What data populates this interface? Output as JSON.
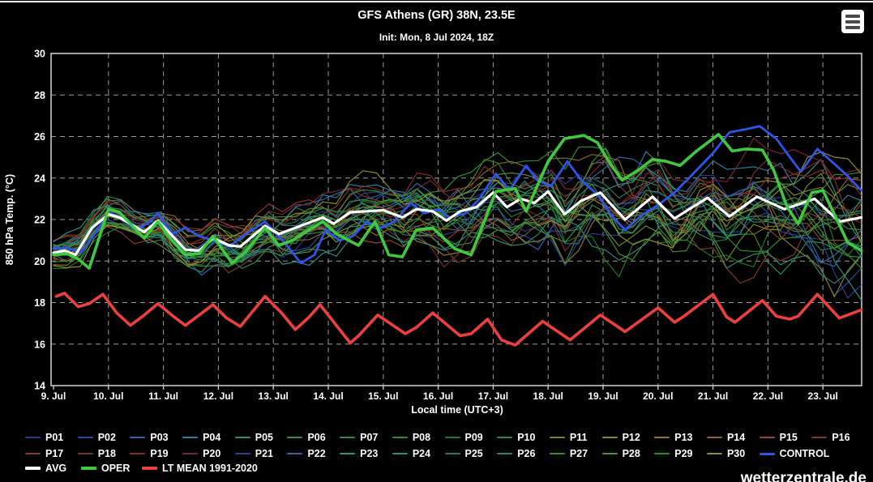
{
  "header": {
    "title": "GFS Athens (GR) 38N, 23.5E",
    "subtitle": "Init: Mon, 8 Jul 2024, 18Z"
  },
  "watermark": "wetterzentrale.de",
  "colors": {
    "background": "#000000",
    "plot_border": "#c9c9c9",
    "grid": "#9a9a9a",
    "text": "#ffffff",
    "menu_button_bg": "#ffffff",
    "menu_button_bars": "#4a4a4a",
    "avg": "#ffffff",
    "oper": "#3fc93f",
    "control": "#2e55e8",
    "lt_mean": "#ee3f3f"
  },
  "menu": {
    "icon": "hamburger-menu-icon"
  },
  "chart_data": {
    "type": "line",
    "title": "GFS Athens (GR) 38N, 23.5E",
    "subtitle": "Init: Mon, 8 Jul 2024, 18Z",
    "xlabel": "Local time (UTC+3)",
    "ylabel": "850 hPa Temp. (°C)",
    "ylim": [
      14,
      30
    ],
    "y_ticks": [
      14,
      16,
      18,
      20,
      22,
      24,
      26,
      28,
      30
    ],
    "x_tick_labels": [
      "9. Jul",
      "10. Jul",
      "11. Jul",
      "12. Jul",
      "13. Jul",
      "14. Jul",
      "15. Jul",
      "16. Jul",
      "17. Jul",
      "18. Jul",
      "19. Jul",
      "20. Jul",
      "21. Jul",
      "22. Jul",
      "23. Jul"
    ],
    "x_range_days": [
      9.0,
      23.7
    ],
    "grid": "dashed gray; horizontal every 2°C, vertical daily",
    "legend_position": "bottom",
    "series": [
      {
        "name": "AVG",
        "color": "#ffffff",
        "width": 3.2,
        "points": [
          [
            9.0,
            20.4
          ],
          [
            9.2,
            20.5
          ],
          [
            9.4,
            20.3
          ],
          [
            9.7,
            21.6
          ],
          [
            10.0,
            22.25
          ],
          [
            10.2,
            22.1
          ],
          [
            10.65,
            21.4
          ],
          [
            10.9,
            21.95
          ],
          [
            11.4,
            20.55
          ],
          [
            11.65,
            20.5
          ],
          [
            11.9,
            21.1
          ],
          [
            12.2,
            20.75
          ],
          [
            12.4,
            20.7
          ],
          [
            12.85,
            21.7
          ],
          [
            13.1,
            21.3
          ],
          [
            13.4,
            21.6
          ],
          [
            13.9,
            22.1
          ],
          [
            14.1,
            21.8
          ],
          [
            14.4,
            22.35
          ],
          [
            14.7,
            22.4
          ],
          [
            15.0,
            22.45
          ],
          [
            15.35,
            22.1
          ],
          [
            15.6,
            22.5
          ],
          [
            15.9,
            22.4
          ],
          [
            16.15,
            21.95
          ],
          [
            16.4,
            22.4
          ],
          [
            16.7,
            22.6
          ],
          [
            17.0,
            23.3
          ],
          [
            17.25,
            22.6
          ],
          [
            17.5,
            23.0
          ],
          [
            17.75,
            22.8
          ],
          [
            18.0,
            23.35
          ],
          [
            18.3,
            22.25
          ],
          [
            18.6,
            22.9
          ],
          [
            18.95,
            23.3
          ],
          [
            19.4,
            22.0
          ],
          [
            19.9,
            23.1
          ],
          [
            20.3,
            22.05
          ],
          [
            20.9,
            23.05
          ],
          [
            21.3,
            22.15
          ],
          [
            21.8,
            23.1
          ],
          [
            22.3,
            22.5
          ],
          [
            22.85,
            23.0
          ],
          [
            23.3,
            21.9
          ],
          [
            23.7,
            22.1
          ]
        ]
      },
      {
        "name": "OPER",
        "color": "#3fc93f",
        "width": 3.6,
        "points": [
          [
            9.0,
            20.3
          ],
          [
            9.25,
            20.35
          ],
          [
            9.45,
            20.1
          ],
          [
            9.65,
            19.65
          ],
          [
            10.0,
            22.5
          ],
          [
            10.2,
            22.35
          ],
          [
            10.65,
            21.1
          ],
          [
            10.9,
            21.9
          ],
          [
            11.15,
            21.0
          ],
          [
            11.4,
            20.3
          ],
          [
            11.65,
            20.35
          ],
          [
            11.9,
            21.2
          ],
          [
            12.25,
            19.9
          ],
          [
            12.5,
            20.45
          ],
          [
            12.85,
            21.6
          ],
          [
            13.1,
            20.75
          ],
          [
            13.35,
            21.0
          ],
          [
            13.9,
            21.9
          ],
          [
            14.15,
            21.3
          ],
          [
            14.55,
            20.75
          ],
          [
            14.85,
            21.9
          ],
          [
            15.1,
            20.3
          ],
          [
            15.35,
            20.2
          ],
          [
            15.6,
            21.5
          ],
          [
            15.9,
            21.6
          ],
          [
            16.3,
            20.6
          ],
          [
            16.6,
            20.3
          ],
          [
            17.05,
            23.35
          ],
          [
            17.4,
            23.5
          ],
          [
            17.6,
            22.4
          ],
          [
            18.0,
            24.8
          ],
          [
            18.3,
            25.9
          ],
          [
            18.65,
            26.05
          ],
          [
            18.9,
            25.7
          ],
          [
            19.15,
            24.6
          ],
          [
            19.35,
            23.9
          ],
          [
            19.65,
            24.4
          ],
          [
            19.9,
            24.9
          ],
          [
            20.15,
            24.8
          ],
          [
            20.4,
            24.6
          ],
          [
            20.7,
            25.3
          ],
          [
            21.1,
            26.1
          ],
          [
            21.35,
            25.3
          ],
          [
            21.6,
            25.4
          ],
          [
            21.9,
            25.35
          ],
          [
            22.1,
            24.4
          ],
          [
            22.35,
            22.6
          ],
          [
            22.55,
            21.8
          ],
          [
            22.8,
            23.3
          ],
          [
            23.0,
            23.4
          ],
          [
            23.2,
            22.3
          ],
          [
            23.45,
            20.9
          ],
          [
            23.7,
            20.5
          ]
        ]
      },
      {
        "name": "CONTROL",
        "color": "#2e55e8",
        "width": 2.8,
        "points": [
          [
            9.0,
            20.6
          ],
          [
            9.25,
            20.65
          ],
          [
            9.5,
            20.4
          ],
          [
            9.75,
            21.3
          ],
          [
            10.0,
            22.3
          ],
          [
            10.2,
            22.15
          ],
          [
            10.5,
            21.5
          ],
          [
            10.7,
            21.8
          ],
          [
            10.9,
            22.3
          ],
          [
            11.15,
            21.3
          ],
          [
            11.4,
            21.6
          ],
          [
            11.65,
            21.2
          ],
          [
            11.9,
            21.0
          ],
          [
            12.2,
            20.7
          ],
          [
            12.5,
            21.3
          ],
          [
            12.85,
            21.9
          ],
          [
            13.2,
            20.9
          ],
          [
            13.5,
            19.9
          ],
          [
            13.75,
            20.3
          ],
          [
            13.95,
            21.5
          ],
          [
            14.2,
            21.0
          ],
          [
            14.45,
            21.2
          ],
          [
            14.7,
            21.9
          ],
          [
            14.95,
            21.6
          ],
          [
            15.2,
            21.9
          ],
          [
            15.5,
            22.8
          ],
          [
            15.75,
            22.3
          ],
          [
            16.0,
            22.5
          ],
          [
            16.2,
            22.1
          ],
          [
            16.5,
            22.3
          ],
          [
            16.75,
            23.0
          ],
          [
            17.05,
            24.2
          ],
          [
            17.3,
            23.4
          ],
          [
            17.6,
            24.6
          ],
          [
            17.8,
            23.9
          ],
          [
            18.05,
            23.6
          ],
          [
            18.35,
            24.8
          ],
          [
            18.6,
            23.9
          ],
          [
            18.9,
            23.2
          ],
          [
            19.15,
            22.2
          ],
          [
            19.4,
            21.5
          ],
          [
            19.7,
            22.2
          ],
          [
            20.0,
            22.7
          ],
          [
            20.3,
            23.3
          ],
          [
            20.6,
            24.1
          ],
          [
            21.0,
            25.2
          ],
          [
            21.3,
            26.2
          ],
          [
            21.6,
            26.35
          ],
          [
            21.85,
            26.5
          ],
          [
            22.15,
            25.9
          ],
          [
            22.4,
            25.0
          ],
          [
            22.6,
            24.3
          ],
          [
            22.9,
            25.4
          ],
          [
            23.2,
            24.7
          ],
          [
            23.45,
            24.1
          ],
          [
            23.7,
            23.4
          ]
        ]
      },
      {
        "name": "LT MEAN 1991-2020",
        "color": "#ee3f3f",
        "width": 3.6,
        "points": [
          [
            9.05,
            18.3
          ],
          [
            9.2,
            18.45
          ],
          [
            9.45,
            17.8
          ],
          [
            9.65,
            17.95
          ],
          [
            9.9,
            18.4
          ],
          [
            10.15,
            17.5
          ],
          [
            10.4,
            16.9
          ],
          [
            10.65,
            17.4
          ],
          [
            10.9,
            17.95
          ],
          [
            11.15,
            17.4
          ],
          [
            11.4,
            16.9
          ],
          [
            11.65,
            17.4
          ],
          [
            11.9,
            17.9
          ],
          [
            12.15,
            17.25
          ],
          [
            12.4,
            16.85
          ],
          [
            12.6,
            17.5
          ],
          [
            12.85,
            18.3
          ],
          [
            13.15,
            17.5
          ],
          [
            13.4,
            16.7
          ],
          [
            13.65,
            17.3
          ],
          [
            13.85,
            17.9
          ],
          [
            14.4,
            16.05
          ],
          [
            14.55,
            16.4
          ],
          [
            14.9,
            17.4
          ],
          [
            15.4,
            16.5
          ],
          [
            15.6,
            16.8
          ],
          [
            15.9,
            17.5
          ],
          [
            16.4,
            16.4
          ],
          [
            16.6,
            16.5
          ],
          [
            16.9,
            17.2
          ],
          [
            17.15,
            16.2
          ],
          [
            17.4,
            15.95
          ],
          [
            17.9,
            17.1
          ],
          [
            18.4,
            16.2
          ],
          [
            18.95,
            17.4
          ],
          [
            19.4,
            16.6
          ],
          [
            20.0,
            17.75
          ],
          [
            20.3,
            17.05
          ],
          [
            20.45,
            17.3
          ],
          [
            21.0,
            18.4
          ],
          [
            21.25,
            17.3
          ],
          [
            21.4,
            17.05
          ],
          [
            21.9,
            18.1
          ],
          [
            22.15,
            17.35
          ],
          [
            22.4,
            17.2
          ],
          [
            22.55,
            17.35
          ],
          [
            22.9,
            18.4
          ],
          [
            23.3,
            17.25
          ],
          [
            23.7,
            17.65
          ]
        ]
      }
    ],
    "ensemble_members": {
      "description": "30 GFS ensemble perturbation members drawn as thin spaghetti lines spread around AVG; spread grows from ~±0.7°C on 9 Jul to ~±2.5°C (extremes ~15-27°C) by 23 Jul",
      "generation": {
        "method": "seeded-noise-around-AVG",
        "points_per_day": 4,
        "spread_start_c": 0.7,
        "spread_end_c": 2.5,
        "soft_max_c": 27.2,
        "soft_min_c": 15.2
      },
      "members": [
        {
          "name": "P01",
          "color": "#24418f"
        },
        {
          "name": "P02",
          "color": "#1f4da0"
        },
        {
          "name": "P03",
          "color": "#2e6aaa"
        },
        {
          "name": "P04",
          "color": "#2f7f9f"
        },
        {
          "name": "P05",
          "color": "#2f8f7a"
        },
        {
          "name": "P06",
          "color": "#2f8f55"
        },
        {
          "name": "P07",
          "color": "#2f8f3f"
        },
        {
          "name": "P08",
          "color": "#338f2e"
        },
        {
          "name": "P09",
          "color": "#1f7d24"
        },
        {
          "name": "P10",
          "color": "#2f8f2f"
        },
        {
          "name": "P11",
          "color": "#6a8f28"
        },
        {
          "name": "P12",
          "color": "#7d8f28"
        },
        {
          "name": "P13",
          "color": "#8f7a28"
        },
        {
          "name": "P14",
          "color": "#8f6628"
        },
        {
          "name": "P15",
          "color": "#8f4e28"
        },
        {
          "name": "P16",
          "color": "#7d3d23"
        },
        {
          "name": "P17",
          "color": "#8f3928"
        },
        {
          "name": "P18",
          "color": "#7d2f28"
        },
        {
          "name": "P19",
          "color": "#8f2828"
        },
        {
          "name": "P20",
          "color": "#7d2333"
        },
        {
          "name": "P21",
          "color": "#24418f"
        },
        {
          "name": "P22",
          "color": "#2e6a9f"
        },
        {
          "name": "P23",
          "color": "#2f8f8a"
        },
        {
          "name": "P24",
          "color": "#2f8f66"
        },
        {
          "name": "P25",
          "color": "#287d57"
        },
        {
          "name": "P26",
          "color": "#2f8f44"
        },
        {
          "name": "P27",
          "color": "#2f8f33"
        },
        {
          "name": "P28",
          "color": "#448f33"
        },
        {
          "name": "P29",
          "color": "#338f24"
        },
        {
          "name": "P30",
          "color": "#8f8f28"
        }
      ]
    }
  },
  "legend": {
    "rows": [
      [
        "P01",
        "P02",
        "P03",
        "P04",
        "P05",
        "P06",
        "P07",
        "P08",
        "P09",
        "P10",
        "P11",
        "P12",
        "P13",
        "P14",
        "P15",
        "P16"
      ],
      [
        "P17",
        "P18",
        "P19",
        "P20",
        "P21",
        "P22",
        "P23",
        "P24",
        "P25",
        "P26",
        "P27",
        "P28",
        "P29",
        "P30",
        "CONTROL"
      ],
      [
        "AVG",
        "OPER",
        "LT MEAN 1991-2020"
      ]
    ]
  }
}
